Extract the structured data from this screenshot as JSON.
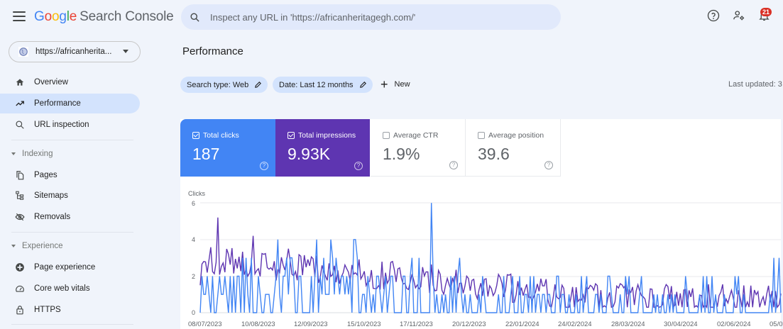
{
  "app": {
    "logo_letters": [
      "G",
      "o",
      "o",
      "g",
      "l",
      "e"
    ],
    "product_name": "Search Console"
  },
  "search": {
    "placeholder": "Inspect any URL in 'https://africanheritagegh.com/'"
  },
  "top_actions": {
    "help_icon": "help-circle-icon",
    "users_icon": "manage-users-icon",
    "notifications_icon": "bell-icon",
    "notification_count": "21"
  },
  "property": {
    "label": "https://africanherita..."
  },
  "sidebar": {
    "items": [
      {
        "label": "Overview",
        "icon": "home-icon",
        "active": false
      },
      {
        "label": "Performance",
        "icon": "trending-up-icon",
        "active": true
      },
      {
        "label": "URL inspection",
        "icon": "search-icon",
        "active": false
      }
    ],
    "sections": [
      {
        "label": "Indexing",
        "items": [
          {
            "label": "Pages",
            "icon": "pages-icon"
          },
          {
            "label": "Sitemaps",
            "icon": "sitemap-icon"
          },
          {
            "label": "Removals",
            "icon": "eye-off-icon"
          }
        ]
      },
      {
        "label": "Experience",
        "items": [
          {
            "label": "Page experience",
            "icon": "page-experience-icon"
          },
          {
            "label": "Core web vitals",
            "icon": "speedometer-icon"
          },
          {
            "label": "HTTPS",
            "icon": "lock-icon"
          }
        ]
      }
    ]
  },
  "main": {
    "title": "Performance",
    "filters": [
      {
        "label": "Search type: Web"
      },
      {
        "label": "Date: Last 12 months"
      }
    ],
    "new_label": "New",
    "last_updated": "Last updated: 3"
  },
  "metrics": [
    {
      "label": "Total clicks",
      "value": "187",
      "checked": true,
      "color": "#4285f4"
    },
    {
      "label": "Total impressions",
      "value": "9.93K",
      "checked": true,
      "color": "#5e35b1"
    },
    {
      "label": "Average CTR",
      "value": "1.9%",
      "checked": false
    },
    {
      "label": "Average position",
      "value": "39.6",
      "checked": false
    }
  ],
  "chart_data": {
    "type": "line",
    "title": "",
    "ylabel": "Clicks",
    "xlabel": "",
    "ylim": [
      0,
      6
    ],
    "yticks": [
      "6",
      "4",
      "2",
      "0"
    ],
    "x_ticks": [
      "08/07/2023",
      "10/08/2023",
      "12/09/2023",
      "15/10/2023",
      "17/11/2023",
      "20/12/2023",
      "22/01/2024",
      "24/02/2024",
      "28/03/2024",
      "30/04/2024",
      "02/06/2024",
      "05/0"
    ],
    "series": [
      {
        "name": "Clicks",
        "color": "#4285f4",
        "note": "daily clicks, mostly 0-2, spikes to 4 around mid-Jul/Aug 2023, peak 6 around 17/11/2023"
      },
      {
        "name": "Impressions",
        "color": "#5e35b1",
        "note": "scaled on secondary axis; high ~5.2 (scaled) in Jul 2023, trending down to ~0.5-1 by mid-2024"
      }
    ]
  }
}
